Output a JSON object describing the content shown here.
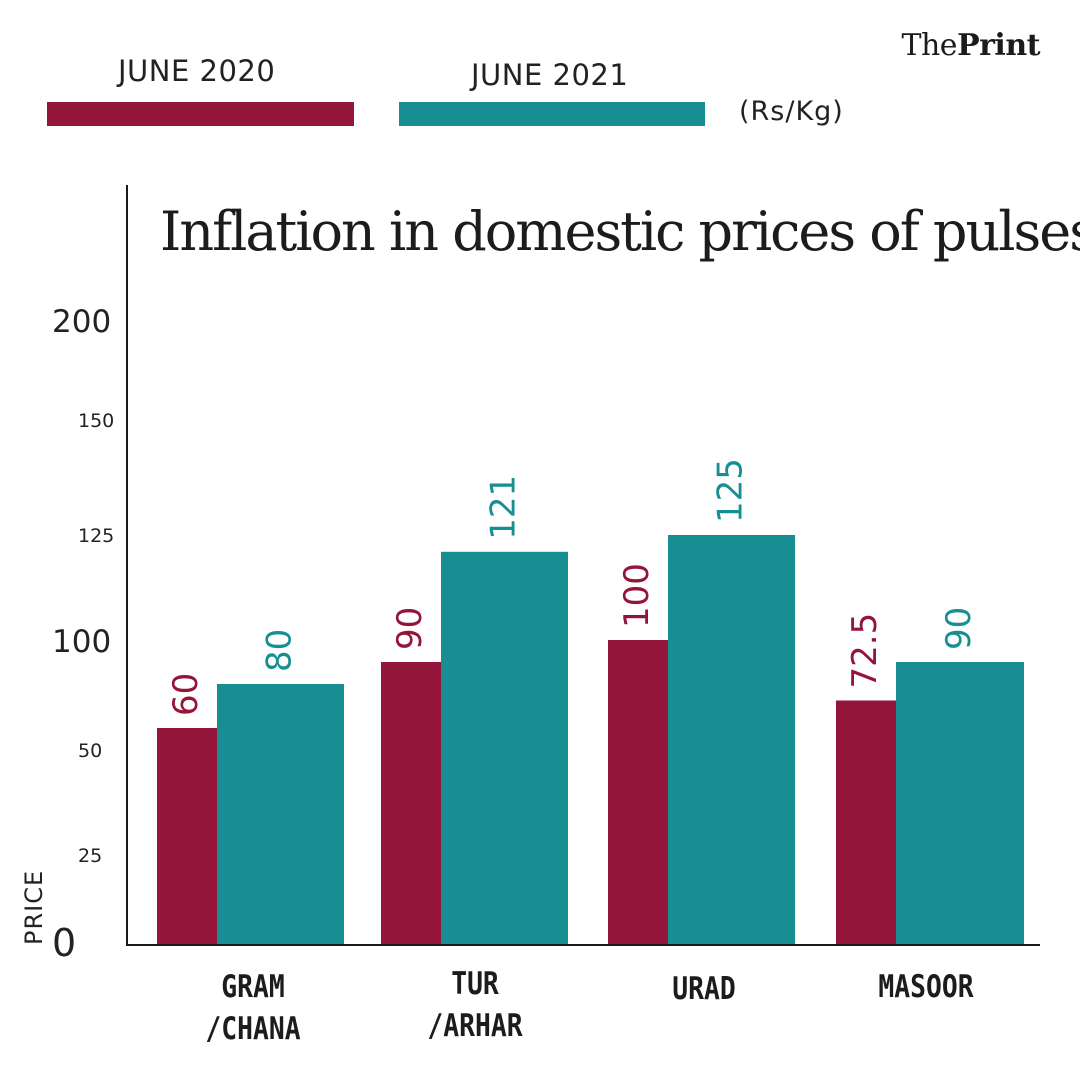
{
  "brand": {
    "prefix": "The",
    "bold": "Print"
  },
  "unit": "(Rs/Kg)",
  "colors": {
    "june2020": "#93163a",
    "june2021": "#168e92",
    "axis": "#1a1a1a"
  },
  "chart_data": {
    "type": "bar",
    "title": "Inflation in domestic prices of pulses",
    "xlabel": "",
    "ylabel": "PRICE",
    "unit": "(Rs/Kg)",
    "categories": [
      "GRAM\n/CHANA",
      "TUR\n/ARHAR",
      "URAD",
      "MASOOR"
    ],
    "series": [
      {
        "name": "JUNE 2020",
        "color": "#93163a",
        "values": [
          60,
          90,
          100,
          72.5
        ],
        "labels": [
          "60",
          "90",
          "100",
          "72.5"
        ]
      },
      {
        "name": "JUNE 2021",
        "color": "#168e92",
        "values": [
          80,
          121,
          125,
          90
        ],
        "labels": [
          "80",
          "121",
          "125",
          "90"
        ]
      }
    ],
    "yticks": [
      0,
      25,
      50,
      100,
      125,
      150,
      200
    ],
    "ytick_labels": [
      "0",
      "25",
      "50",
      "100",
      "125",
      "150",
      "200"
    ],
    "ylim": [
      0,
      200
    ],
    "legend": "top-left"
  }
}
